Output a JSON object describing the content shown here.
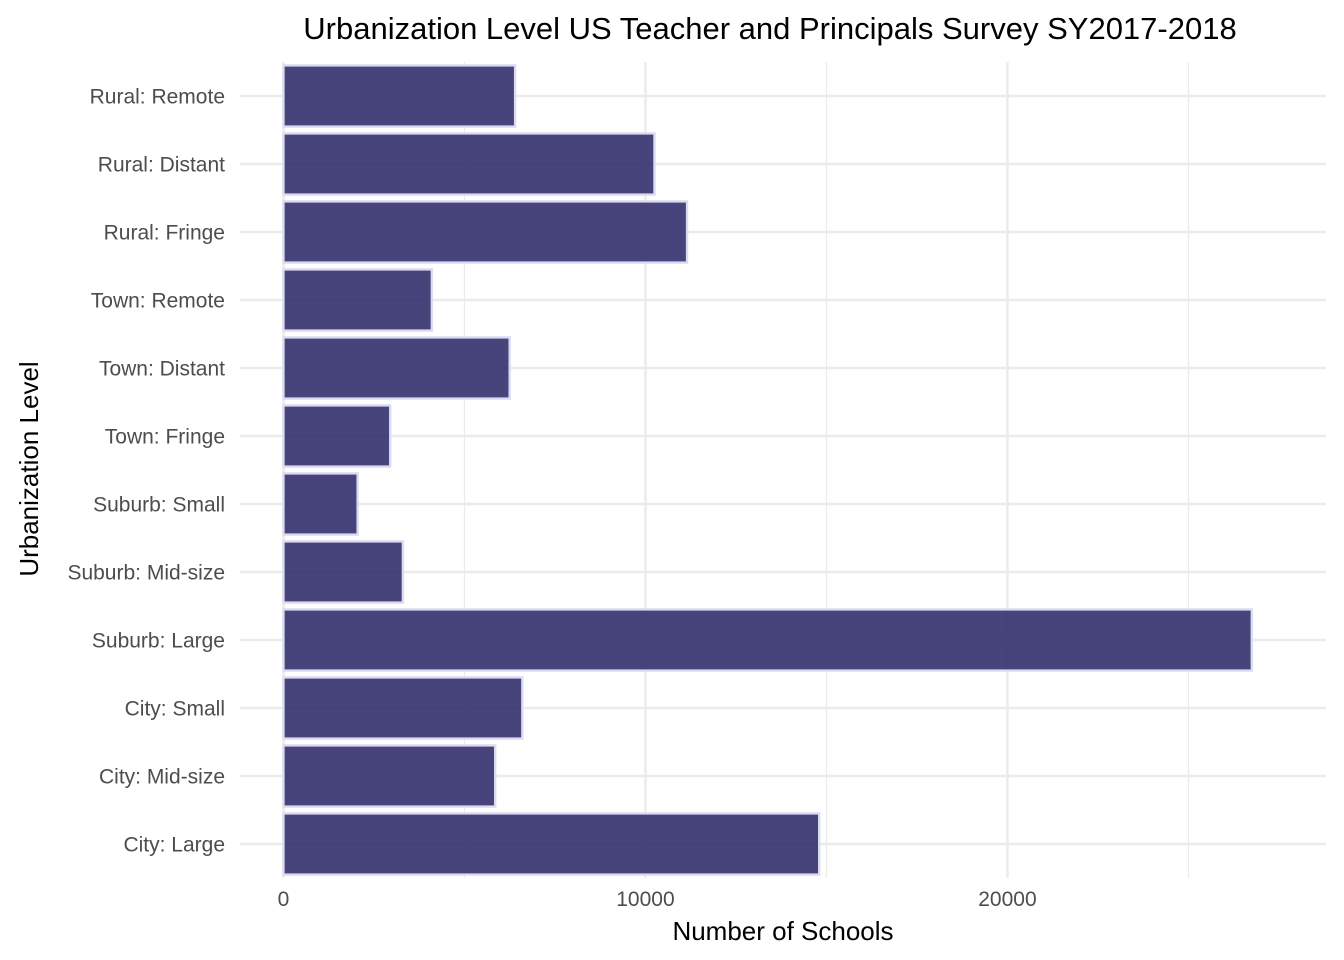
{
  "chart_data": {
    "type": "bar",
    "orientation": "horizontal",
    "title": "Urbanization Level US Teacher and Principals Survey SY2017-2018",
    "xlabel": "Number of Schools",
    "ylabel": "Urbanization Level",
    "categories": [
      "City: Large",
      "City: Mid-size",
      "City: Small",
      "Suburb: Large",
      "Suburb: Mid-size",
      "Suburb: Small",
      "Town: Fringe",
      "Town: Distant",
      "Town: Remote",
      "Rural: Fringe",
      "Rural: Distant",
      "Rural: Remote"
    ],
    "values": [
      14800,
      5850,
      6600,
      26750,
      3300,
      2050,
      2950,
      6250,
      4100,
      11150,
      10250,
      6400
    ],
    "xlim": [
      -1200,
      28800
    ],
    "x_ticks": [
      0,
      10000,
      20000
    ],
    "x_tick_labels": [
      "0",
      "10000",
      "20000"
    ],
    "grid": true,
    "bar_color": "#2e2a69",
    "bar_outline_color": "#dcdcf0"
  }
}
